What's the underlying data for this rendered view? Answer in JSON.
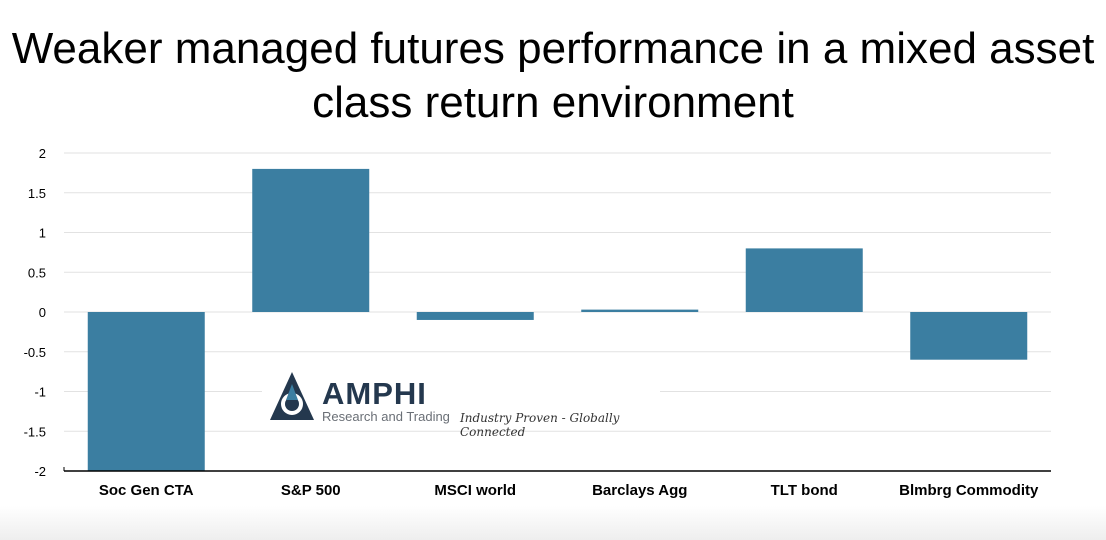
{
  "title": "Weaker managed futures performance in a mixed asset class return environment",
  "logo": {
    "name": "AMPHI",
    "subtitle": "Research and Trading",
    "tagline": "Industry Proven - Globally Connected"
  },
  "colors": {
    "bar": "#3b7ea1",
    "grid": "#e2e2e2",
    "axis": "#000000"
  },
  "chart_data": {
    "type": "bar",
    "title": "Weaker managed futures performance in a mixed asset class return environment",
    "xlabel": "",
    "ylabel": "",
    "categories": [
      "Soc Gen CTA",
      "S&P 500",
      "MSCI world",
      "Barclays Agg",
      "TLT bond",
      "Blmbrg Commodity"
    ],
    "values": [
      -2.0,
      1.8,
      -0.1,
      0.03,
      0.8,
      -0.6
    ],
    "ylim": [
      -2,
      2
    ],
    "yticks": [
      2,
      1.5,
      1,
      0.5,
      0,
      -0.5,
      -1,
      -1.5,
      -2
    ],
    "ytick_labels": [
      "2",
      "1.5",
      "1",
      "0.5",
      "0",
      "-0.5",
      "-1",
      "-1.5",
      "-2"
    ],
    "grid": true,
    "legend": "none"
  }
}
